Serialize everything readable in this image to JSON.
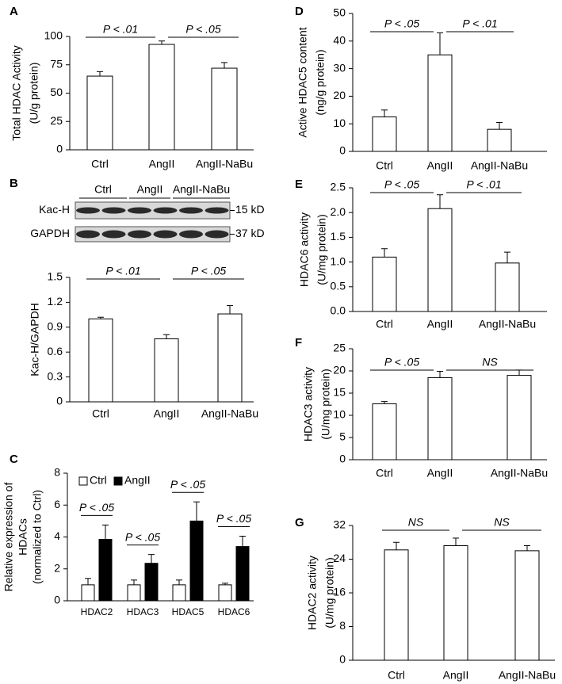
{
  "chart_data": [
    {
      "type": "bar",
      "panel": "A",
      "ylabel": [
        "Total HDAC Activity",
        "(U/g protein)"
      ],
      "categories": [
        "Ctrl",
        "AngII",
        "AngII-NaBu"
      ],
      "values": [
        65,
        93,
        72
      ],
      "errors": [
        4,
        3,
        5
      ],
      "color": "#ffffff",
      "ylim": [
        0,
        100
      ],
      "yticks": [
        0,
        25,
        50,
        75,
        100
      ],
      "annotations": [
        "P < .01",
        "P < .05"
      ]
    },
    {
      "type": "bar",
      "panel": "B",
      "ylabel": [
        "Kac-H/GAPDH"
      ],
      "blot": {
        "lanes": [
          "Ctrl",
          "AngII",
          "AngII-NaBu"
        ],
        "rows": [
          "Kac-H",
          "GAPDH"
        ],
        "sizes": [
          "15 kD",
          "37 kD"
        ]
      },
      "categories": [
        "Ctrl",
        "AngII",
        "AngII-NaBu"
      ],
      "values": [
        1.0,
        0.76,
        1.06
      ],
      "errors": [
        0.02,
        0.05,
        0.1
      ],
      "color": "#ffffff",
      "ylim": [
        0,
        1.5
      ],
      "yticks": [
        0,
        0.3,
        0.6,
        0.9,
        1.2,
        1.5
      ],
      "annotations": [
        "P < .01",
        "P < .05"
      ]
    },
    {
      "type": "grouped-bar",
      "panel": "C",
      "ylabel": [
        "Relative expression of",
        "HDACs",
        "(normalized to Ctrl)"
      ],
      "categories": [
        "HDAC2",
        "HDAC3",
        "HDAC5",
        "HDAC6"
      ],
      "series": [
        {
          "name": "Ctrl",
          "color": "#ffffff",
          "values": [
            1,
            1,
            1,
            1
          ],
          "errors": [
            0.4,
            0.3,
            0.3,
            0.1
          ]
        },
        {
          "name": "AngII",
          "color": "#000000",
          "values": [
            3.85,
            2.35,
            5.0,
            3.4
          ],
          "errors": [
            0.9,
            0.55,
            1.2,
            0.65
          ]
        }
      ],
      "ylim": [
        0,
        8
      ],
      "yticks": [
        0,
        2,
        4,
        6,
        8
      ],
      "annotations": [
        "P < .05",
        "P < .05",
        "P < .05",
        "P < .05"
      ]
    },
    {
      "type": "bar",
      "panel": "D",
      "ylabel": [
        "Active HDAC5 content",
        "(ng/g protein)"
      ],
      "categories": [
        "Ctrl",
        "AngII",
        "AngII-NaBu"
      ],
      "values": [
        12.5,
        35,
        8
      ],
      "errors": [
        2.5,
        8,
        2.5
      ],
      "color": "#ffffff",
      "ylim": [
        0,
        50
      ],
      "yticks": [
        0,
        10,
        20,
        30,
        40,
        50
      ],
      "annotations": [
        "P < .05",
        "P < .01"
      ]
    },
    {
      "type": "bar",
      "panel": "E",
      "ylabel": [
        "HDAC6 activity",
        "(U/mg protein)"
      ],
      "categories": [
        "Ctrl",
        "AngII",
        "AngII-NaBu"
      ],
      "values": [
        1.1,
        2.08,
        0.98
      ],
      "errors": [
        0.17,
        0.28,
        0.22
      ],
      "color": "#ffffff",
      "ylim": [
        0,
        2.5
      ],
      "yticks": [
        {
          "value": 0,
          "label": "0.0"
        },
        0.5,
        {
          "value": 1,
          "label": "1.0"
        },
        1.5,
        {
          "value": 2,
          "label": "2.0"
        },
        2.5
      ],
      "annotations": [
        "P < .05",
        "P < .01"
      ]
    },
    {
      "type": "bar",
      "panel": "F",
      "ylabel": [
        "HDAC3 activity",
        "(U/mg protein)"
      ],
      "categories": [
        "Ctrl",
        "AngII",
        "AngII-NaBu"
      ],
      "values": [
        12.6,
        18.5,
        19
      ],
      "errors": [
        0.5,
        1.4,
        1.2
      ],
      "color": "#ffffff",
      "ylim": [
        0,
        25
      ],
      "yticks": [
        0,
        5,
        10,
        15,
        20,
        25
      ],
      "annotations": [
        "P < .05",
        "NS"
      ]
    },
    {
      "type": "bar",
      "panel": "G",
      "ylabel": [
        "HDAC2 activity",
        "(U/mg protein)"
      ],
      "categories": [
        "Ctrl",
        "AngII",
        "AngII-NaBu"
      ],
      "values": [
        26.2,
        27.2,
        26
      ],
      "errors": [
        1.8,
        1.8,
        1.2
      ],
      "color": "#ffffff",
      "ylim": [
        0,
        32
      ],
      "yticks": [
        0,
        8,
        16,
        24,
        32
      ],
      "annotations": [
        "NS",
        "NS"
      ]
    }
  ]
}
